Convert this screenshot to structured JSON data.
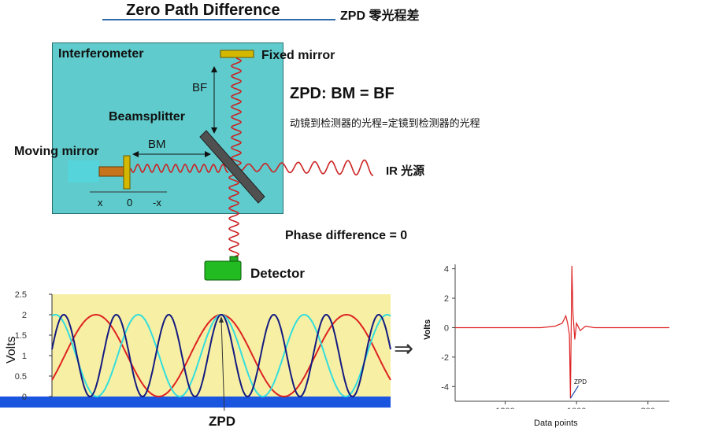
{
  "header": {
    "title": "Zero Path Difference",
    "zpd_title": "ZPD 零光程差"
  },
  "interferometer": {
    "label": "Interferometer",
    "fixed_mirror": "Fixed mirror",
    "bf": "BF",
    "beamsplitter": "Beamsplitter",
    "bm": "BM",
    "moving_mirror": "Moving mirror",
    "x_ticks": [
      "x",
      "0",
      "-x"
    ]
  },
  "annotations": {
    "zpd_equation": "ZPD: BM = BF",
    "zpd_chinese": "动镜到检测器的光程=定镜到检测器的光程",
    "ir_source": "IR 光源",
    "phase_difference": "Phase difference = 0",
    "detector": "Detector",
    "zpd_bottom": "ZPD",
    "arrow": "⇒"
  },
  "colors": {
    "box": "#5fcbcc",
    "wave": "#cc2222",
    "mirror": "#d4b800",
    "beamsplitter": "#555555",
    "detector": "#22aa22",
    "plot_bg": "#f7f0a4",
    "plot_floor": "#1a55e0",
    "series_red": "#dd2222",
    "series_cyan": "#33dddd",
    "series_navy": "#141a80",
    "spectrum_line": "#dd2222"
  },
  "chart_data": [
    {
      "type": "line",
      "title": "",
      "xlabel": "",
      "ylabel": "Volts",
      "ylim": [
        0,
        2.5
      ],
      "yticks": [
        "2.5",
        "2",
        "1.5",
        "1",
        "0.5",
        "0"
      ],
      "x_range": [
        -2,
        2
      ],
      "zpd_x": 0,
      "series": [
        {
          "color": "red",
          "period": 1.48,
          "min": 0,
          "max": 2
        },
        {
          "color": "cyan",
          "period": 0.98,
          "min": 0,
          "max": 2
        },
        {
          "color": "navy",
          "period": 0.62,
          "min": 0,
          "max": 2
        }
      ]
    },
    {
      "type": "line",
      "title": "",
      "xlabel": "Data points",
      "ylabel": "Volts",
      "xlim": [
        1340,
        740
      ],
      "ylim": [
        -5,
        4.3
      ],
      "xticks": [
        "1200",
        "1000",
        "800"
      ],
      "yticks": [
        "4",
        "2",
        "0",
        "-2",
        "-4"
      ],
      "annotation": "ZPD",
      "points": [
        [
          1340,
          0
        ],
        [
          1100,
          0
        ],
        [
          1060,
          0.1
        ],
        [
          1040,
          0.3
        ],
        [
          1030,
          0.8
        ],
        [
          1025,
          0.3
        ],
        [
          1020,
          -0.5
        ],
        [
          1017,
          -4.8
        ],
        [
          1013,
          4.2
        ],
        [
          1010,
          1.0
        ],
        [
          1005,
          -0.8
        ],
        [
          1000,
          0.3
        ],
        [
          990,
          -0.2
        ],
        [
          975,
          0.1
        ],
        [
          950,
          0
        ],
        [
          740,
          0
        ]
      ]
    }
  ]
}
